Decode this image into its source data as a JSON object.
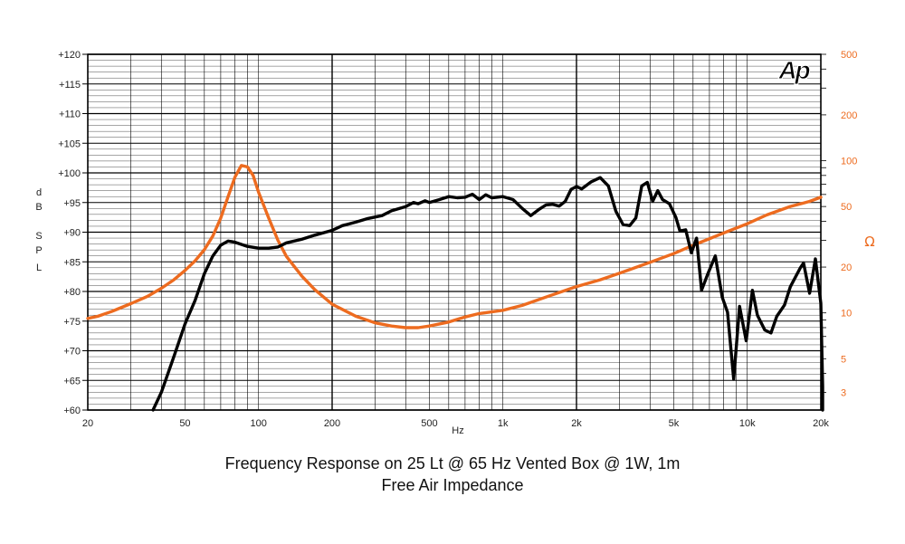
{
  "chart_data": {
    "type": "line",
    "title": "Frequency Response on 25 Lt @ 65 Hz Vented Box @ 1W, 1m",
    "subtitle": "Free Air Impedance",
    "xlabel": "Hz",
    "xscale": "log",
    "xlim": [
      20,
      20000
    ],
    "x_ticks": [
      {
        "value": 20,
        "label": "20"
      },
      {
        "value": 50,
        "label": "50"
      },
      {
        "value": 100,
        "label": "100"
      },
      {
        "value": 200,
        "label": "200"
      },
      {
        "value": 500,
        "label": "500"
      },
      {
        "value": 1000,
        "label": "1k"
      },
      {
        "value": 2000,
        "label": "2k"
      },
      {
        "value": 5000,
        "label": "5k"
      },
      {
        "value": 10000,
        "label": "10k"
      },
      {
        "value": 20000,
        "label": "20k"
      }
    ],
    "y_left": {
      "label": [
        "d",
        "B",
        "",
        "S",
        "P",
        "L"
      ],
      "lim": [
        60,
        120
      ],
      "ticks": [
        {
          "value": 120,
          "label": "+120"
        },
        {
          "value": 115,
          "label": "+115"
        },
        {
          "value": 110,
          "label": "+110"
        },
        {
          "value": 105,
          "label": "+105"
        },
        {
          "value": 100,
          "label": "+100"
        },
        {
          "value": 95,
          "label": "+95"
        },
        {
          "value": 90,
          "label": "+90"
        },
        {
          "value": 85,
          "label": "+85"
        },
        {
          "value": 80,
          "label": "+80"
        },
        {
          "value": 75,
          "label": "+75"
        },
        {
          "value": 70,
          "label": "+70"
        },
        {
          "value": 65,
          "label": "+65"
        },
        {
          "value": 60,
          "label": "+60"
        }
      ]
    },
    "y_right": {
      "label": "Ω",
      "scale": "log",
      "lim": [
        2.3,
        500
      ],
      "ticks": [
        {
          "value": 500,
          "label": "500"
        },
        {
          "value": 200,
          "label": "200"
        },
        {
          "value": 100,
          "label": "100"
        },
        {
          "value": 50,
          "label": "50"
        },
        {
          "value": 20,
          "label": "20"
        },
        {
          "value": 10,
          "label": "10"
        },
        {
          "value": 5,
          "label": "5"
        },
        {
          "value": 3,
          "label": "3"
        }
      ]
    },
    "grid": true,
    "series": [
      {
        "axis": "left",
        "color": "#000000",
        "points": [
          [
            37,
            60
          ],
          [
            40,
            63
          ],
          [
            45,
            69
          ],
          [
            50,
            74.5
          ],
          [
            55,
            78.5
          ],
          [
            60,
            83
          ],
          [
            65,
            86
          ],
          [
            70,
            87.8
          ],
          [
            75,
            88.5
          ],
          [
            80,
            88.3
          ],
          [
            90,
            87.6
          ],
          [
            100,
            87.3
          ],
          [
            110,
            87.3
          ],
          [
            120,
            87.5
          ],
          [
            130,
            88.2
          ],
          [
            150,
            88.8
          ],
          [
            170,
            89.5
          ],
          [
            200,
            90.3
          ],
          [
            220,
            91.1
          ],
          [
            250,
            91.7
          ],
          [
            280,
            92.3
          ],
          [
            320,
            92.8
          ],
          [
            350,
            93.6
          ],
          [
            400,
            94.3
          ],
          [
            430,
            95.0
          ],
          [
            450,
            94.8
          ],
          [
            480,
            95.3
          ],
          [
            500,
            95.0
          ],
          [
            550,
            95.5
          ],
          [
            600,
            96.0
          ],
          [
            650,
            95.8
          ],
          [
            700,
            95.9
          ],
          [
            750,
            96.4
          ],
          [
            800,
            95.5
          ],
          [
            850,
            96.3
          ],
          [
            900,
            95.8
          ],
          [
            1000,
            96.0
          ],
          [
            1100,
            95.5
          ],
          [
            1200,
            94.0
          ],
          [
            1300,
            92.8
          ],
          [
            1400,
            93.8
          ],
          [
            1500,
            94.6
          ],
          [
            1600,
            94.7
          ],
          [
            1700,
            94.4
          ],
          [
            1800,
            95.2
          ],
          [
            1900,
            97.2
          ],
          [
            2000,
            97.7
          ],
          [
            2100,
            97.3
          ],
          [
            2300,
            98.5
          ],
          [
            2500,
            99.2
          ],
          [
            2700,
            97.8
          ],
          [
            2900,
            93.5
          ],
          [
            3100,
            91.3
          ],
          [
            3300,
            91.1
          ],
          [
            3500,
            92.4
          ],
          [
            3700,
            97.8
          ],
          [
            3900,
            98.4
          ],
          [
            4100,
            95.2
          ],
          [
            4300,
            97.0
          ],
          [
            4500,
            95.5
          ],
          [
            4800,
            94.8
          ],
          [
            5100,
            92.5
          ],
          [
            5300,
            90.2
          ],
          [
            5600,
            90.4
          ],
          [
            5900,
            86.5
          ],
          [
            6200,
            89.0
          ],
          [
            6500,
            80.2
          ],
          [
            6900,
            83.0
          ],
          [
            7400,
            86.0
          ],
          [
            7900,
            79.0
          ],
          [
            8300,
            76.5
          ],
          [
            8800,
            65.2
          ],
          [
            9300,
            77.5
          ],
          [
            9900,
            71.7
          ],
          [
            10500,
            80.2
          ],
          [
            11000,
            76.0
          ],
          [
            11800,
            73.5
          ],
          [
            12500,
            73.0
          ],
          [
            13200,
            75.8
          ],
          [
            14200,
            77.7
          ],
          [
            15000,
            80.8
          ],
          [
            16500,
            84.0
          ],
          [
            17000,
            84.8
          ],
          [
            18000,
            79.7
          ],
          [
            19000,
            85.5
          ],
          [
            20000,
            78.0
          ],
          [
            20800,
            64.0
          ],
          [
            21300,
            60.0
          ]
        ]
      },
      {
        "axis": "right",
        "color": "#ed6b1f",
        "points": [
          [
            20,
            9.2
          ],
          [
            22,
            9.5
          ],
          [
            25,
            10.2
          ],
          [
            30,
            11.5
          ],
          [
            35,
            12.8
          ],
          [
            40,
            14.5
          ],
          [
            45,
            16.5
          ],
          [
            50,
            19.0
          ],
          [
            55,
            22.0
          ],
          [
            60,
            26.0
          ],
          [
            65,
            32.0
          ],
          [
            70,
            42.0
          ],
          [
            75,
            58.0
          ],
          [
            80,
            78.0
          ],
          [
            85,
            93.0
          ],
          [
            90,
            91.0
          ],
          [
            95,
            80.0
          ],
          [
            100,
            62.0
          ],
          [
            110,
            42.0
          ],
          [
            120,
            30.0
          ],
          [
            130,
            23.5
          ],
          [
            150,
            17.5
          ],
          [
            170,
            14.2
          ],
          [
            200,
            11.4
          ],
          [
            250,
            9.5
          ],
          [
            300,
            8.6
          ],
          [
            350,
            8.2
          ],
          [
            400,
            8.0
          ],
          [
            450,
            8.0
          ],
          [
            500,
            8.2
          ],
          [
            600,
            8.7
          ],
          [
            700,
            9.4
          ],
          [
            800,
            9.9
          ],
          [
            1000,
            10.4
          ],
          [
            1200,
            11.2
          ],
          [
            1500,
            12.7
          ],
          [
            2000,
            14.9
          ],
          [
            2500,
            16.5
          ],
          [
            3000,
            18.2
          ],
          [
            4000,
            21.5
          ],
          [
            5000,
            24.5
          ],
          [
            6000,
            27.8
          ],
          [
            8000,
            33.5
          ],
          [
            10000,
            38.5
          ],
          [
            12000,
            44.0
          ],
          [
            15000,
            50.0
          ],
          [
            18000,
            54.0
          ],
          [
            20000,
            57.5
          ]
        ]
      }
    ],
    "logo": "Ap",
    "colors": {
      "grid": "#000000",
      "right_axis": "#ed6b1f",
      "spl_curve": "#000000",
      "impedance_curve": "#ed6b1f"
    }
  }
}
